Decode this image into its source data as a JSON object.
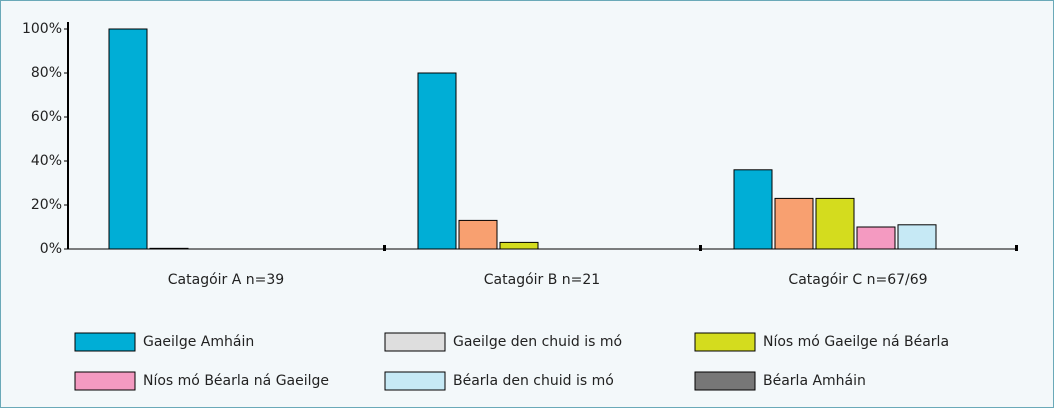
{
  "chart_data": {
    "type": "bar",
    "categories": [
      "Catagóir A n=39",
      "Catagóir B n=21",
      "Catagóir C n=67/69"
    ],
    "series": [
      {
        "name": "Gaeilge Amháin",
        "color": "#00aed6",
        "legend_color": "#00aed6",
        "values": [
          100,
          80,
          36
        ]
      },
      {
        "name": "Gaeilge den chuid is mó",
        "color": "#f8a070",
        "legend_color": "#dedede",
        "values": [
          0.3,
          13,
          23
        ]
      },
      {
        "name": "Níos mó Gaeilge ná Béarla",
        "color": "#d4dc1e",
        "legend_color": "#d4dc1e",
        "values": [
          0,
          3,
          23
        ]
      },
      {
        "name": "Níos mó Béarla ná Gaeilge",
        "color": "#f49ac1",
        "legend_color": "#f49ac1",
        "values": [
          0,
          0,
          10
        ]
      },
      {
        "name": "Béarla den chuid is mó",
        "color": "#c6e9f5",
        "legend_color": "#c6e9f5",
        "values": [
          0,
          0,
          11
        ]
      },
      {
        "name": "Béarla Amháin",
        "color": "#777777",
        "legend_color": "#777777",
        "values": [
          0,
          0,
          0
        ]
      }
    ],
    "ylim": [
      0,
      100
    ],
    "yticks": [
      {
        "value": 0,
        "label": "0%"
      },
      {
        "value": 20,
        "label": "20%"
      },
      {
        "value": 40,
        "label": "40%"
      },
      {
        "value": 60,
        "label": "60%"
      },
      {
        "value": 80,
        "label": "80%"
      },
      {
        "value": 100,
        "label": "100%"
      }
    ],
    "legend": "bottom"
  }
}
